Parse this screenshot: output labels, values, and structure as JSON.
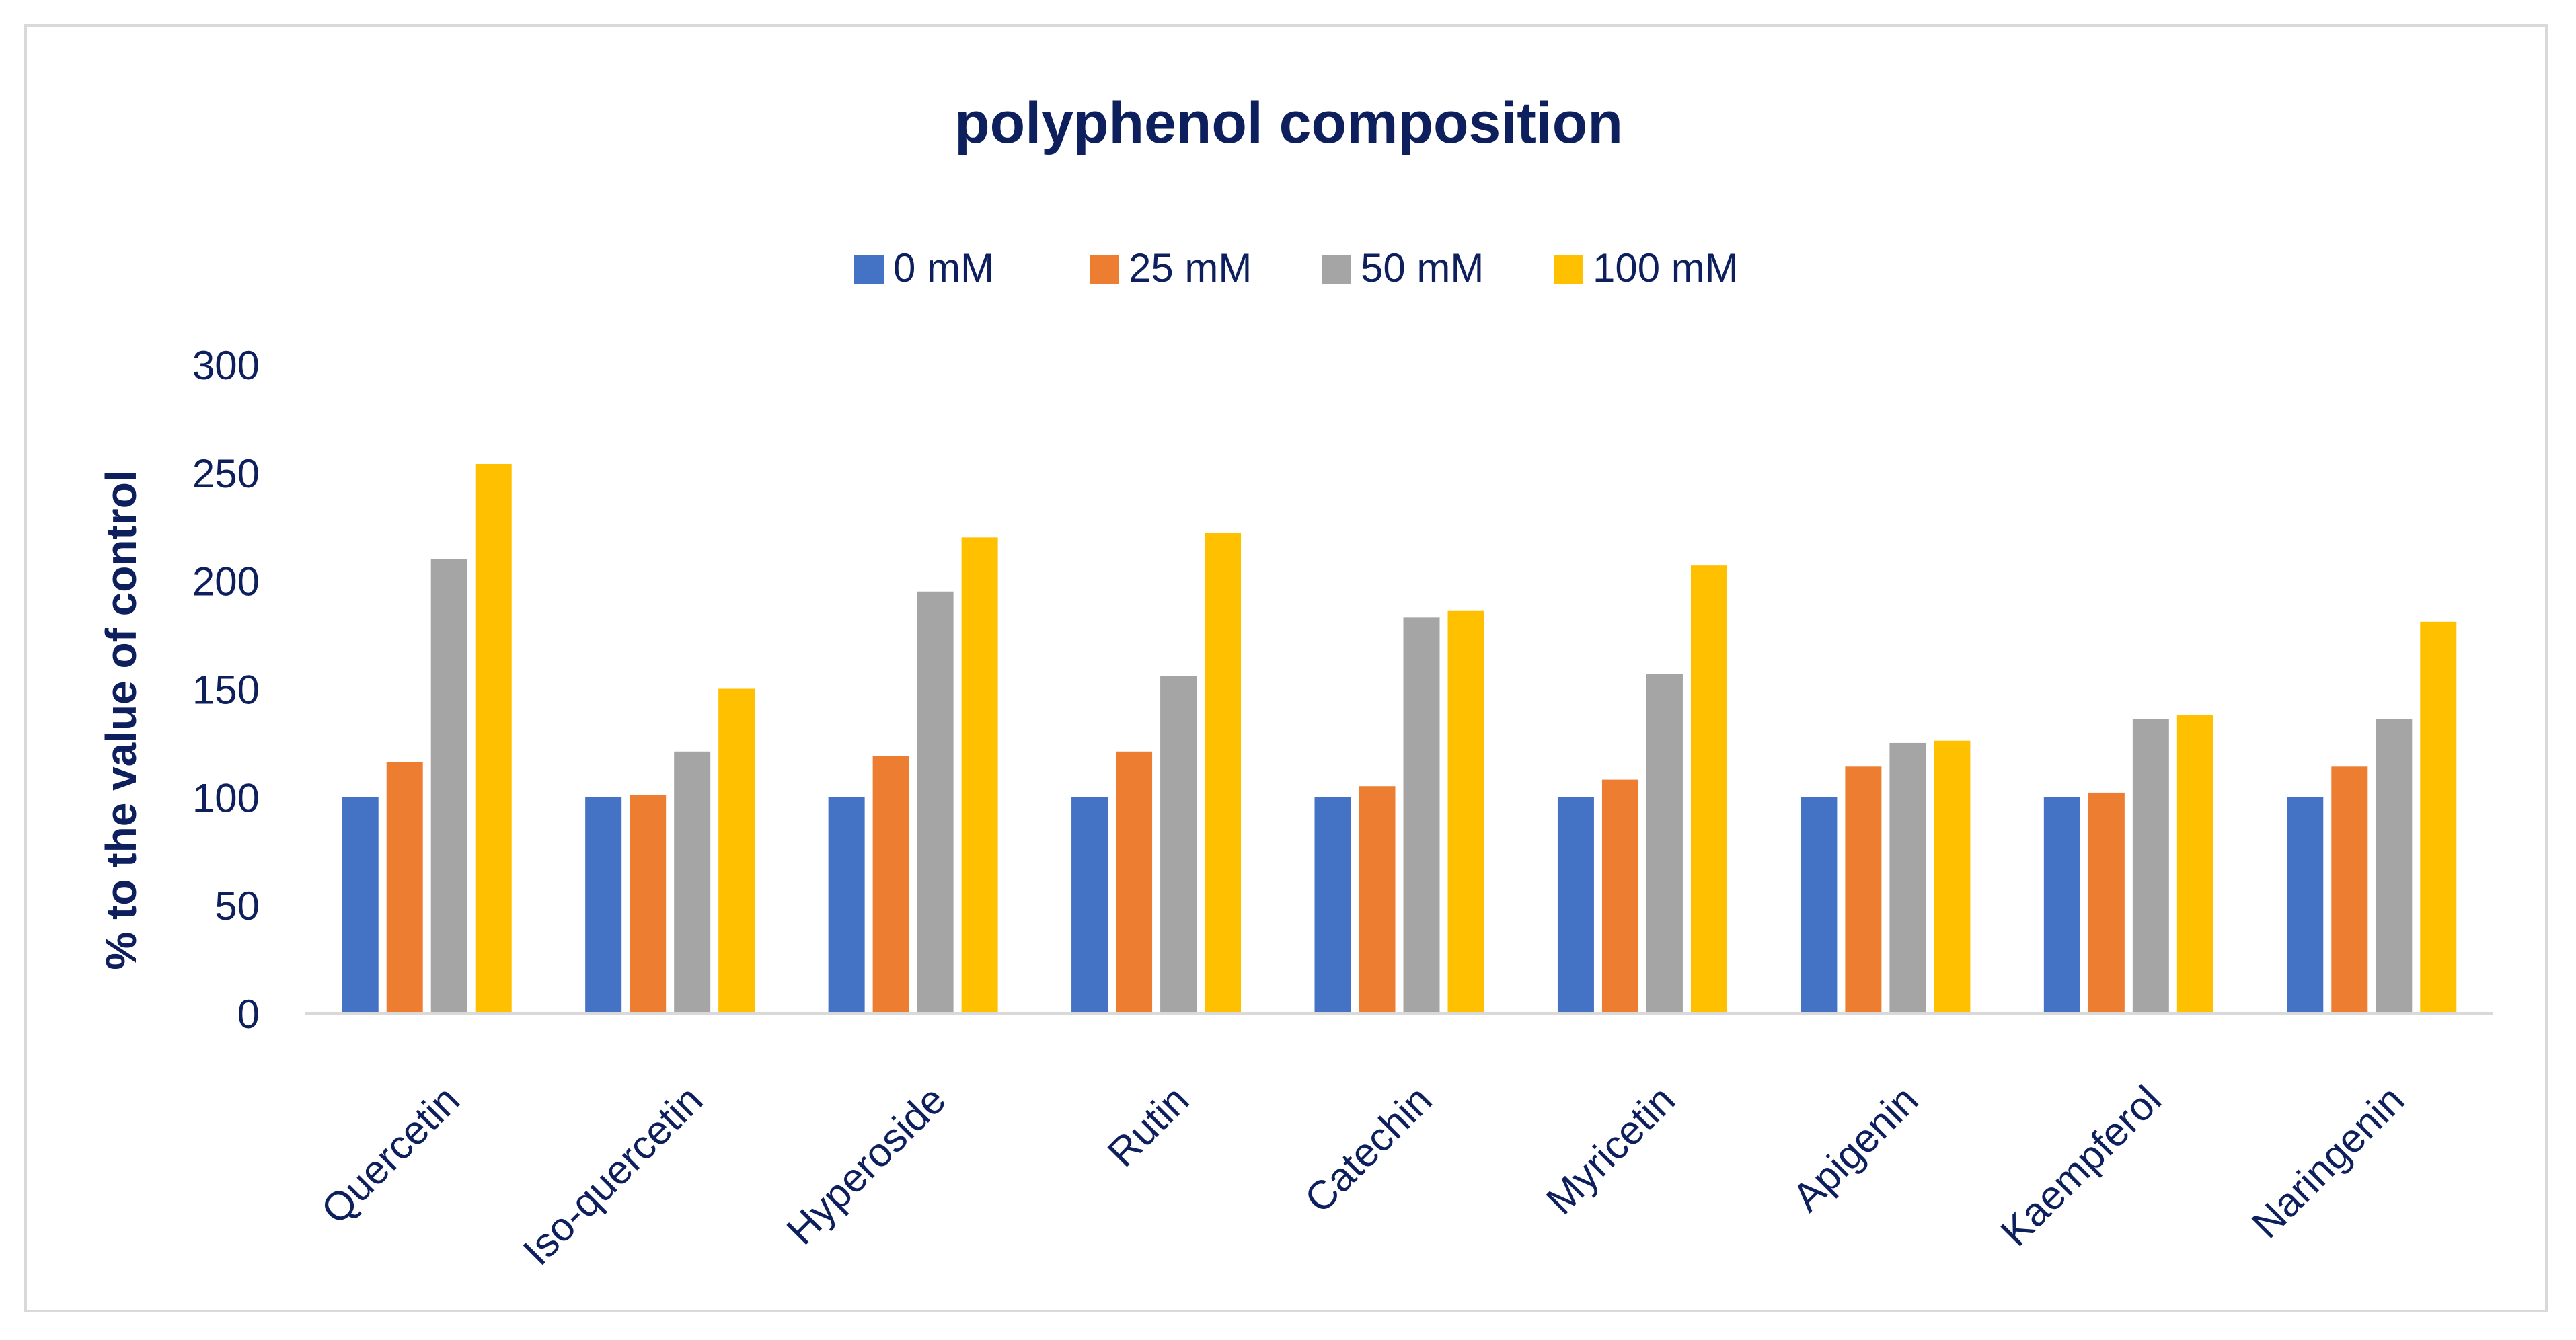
{
  "chart_data": {
    "type": "bar",
    "title": "polyphenol composition",
    "xlabel": "",
    "ylabel": "% to the value of control",
    "ylim": [
      0,
      300
    ],
    "yticks": [
      0,
      50,
      100,
      150,
      200,
      250,
      300
    ],
    "grid": false,
    "legend_position": "top-center",
    "categories": [
      "Quercetin",
      "Iso-quercetin",
      "Hyperoside",
      "Rutin",
      "Catechin",
      "Myricetin",
      "Apigenin",
      "Kaempferol",
      "Naringenin"
    ],
    "series": [
      {
        "name": "0 mM",
        "color": "#4472c4",
        "values": [
          100,
          100,
          100,
          100,
          100,
          100,
          100,
          100,
          100
        ]
      },
      {
        "name": "25 mM",
        "color": "#ed7d31",
        "values": [
          116,
          101,
          119,
          121,
          105,
          108,
          114,
          102,
          114
        ]
      },
      {
        "name": "50 mM",
        "color": "#a5a5a5",
        "values": [
          210,
          121,
          195,
          156,
          183,
          157,
          125,
          136,
          136
        ]
      },
      {
        "name": "100 mM",
        "color": "#ffc000",
        "values": [
          254,
          150,
          220,
          222,
          186,
          207,
          126,
          138,
          181
        ]
      }
    ],
    "colors": {
      "text": "#0d1f5c",
      "axis": "#d9d9d9",
      "border": "#d9d9d9"
    }
  }
}
